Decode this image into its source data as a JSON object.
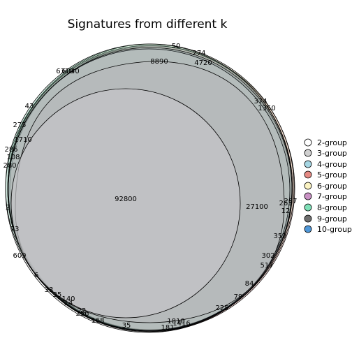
{
  "title": "Signatures from different k",
  "legend": [
    {
      "label": "2-group",
      "color": "#ffffff"
    },
    {
      "label": "3-group",
      "color": "#d0d0d0"
    },
    {
      "label": "4-group",
      "color": "#a6d6e3"
    },
    {
      "label": "5-group",
      "color": "#e58a84"
    },
    {
      "label": "6-group",
      "color": "#fbf3c2"
    },
    {
      "label": "7-group",
      "color": "#c991c4"
    },
    {
      "label": "8-group",
      "color": "#7fe0b8"
    },
    {
      "label": "9-group",
      "color": "#6e6e6e"
    },
    {
      "label": "10-group",
      "color": "#4f97d8"
    }
  ],
  "region_labels": [
    "92800",
    "27100",
    "8890",
    "4720",
    "1350",
    "374",
    "274",
    "50",
    "6310",
    "6040",
    "43",
    "275",
    "1710",
    "286",
    "108",
    "280",
    "287",
    "263",
    "12",
    "352",
    "302",
    "517",
    "84",
    "79",
    "225",
    "1810",
    "1416",
    "181",
    "35",
    "168",
    "256",
    "22",
    "14",
    "140",
    "35",
    "33",
    "6",
    "609",
    "73",
    "2"
  ]
}
